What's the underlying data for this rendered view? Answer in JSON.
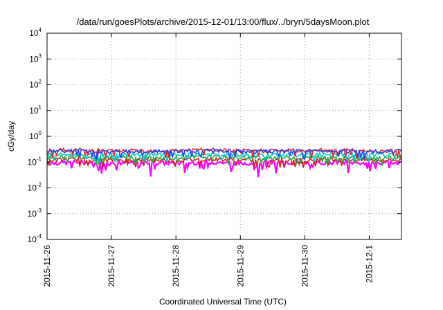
{
  "chart_data": {
    "type": "line",
    "title": "/data/run/goesPlots/archive/2015-12-01/13:00/flux/../bryn/5daysMoon.plot",
    "xlabel": "Coordinated Universal Time (UTC)",
    "ylabel": "cGy/day",
    "x_range": [
      "2015-11-26",
      "2015-12-01 12:00"
    ],
    "x_ticks": [
      "2015-11-26",
      "2015-11-27",
      "2015-11-28",
      "2015-11-29",
      "2015-11-30",
      "2015-12-1"
    ],
    "y_scale": "log",
    "ylim": [
      0.0001,
      10000
    ],
    "y_ticks": [
      {
        "base": "10",
        "exp": "-4"
      },
      {
        "base": "10",
        "exp": "-3"
      },
      {
        "base": "10",
        "exp": "-2"
      },
      {
        "base": "10",
        "exp": "-1"
      },
      {
        "base": "10",
        "exp": "0"
      },
      {
        "base": "10",
        "exp": "1"
      },
      {
        "base": "10",
        "exp": "2"
      },
      {
        "base": "10",
        "exp": "3"
      },
      {
        "base": "10",
        "exp": "4"
      }
    ],
    "grid": true,
    "series_count_days": 5.5,
    "series": [
      {
        "color": "#ff00ff",
        "base": 0.09,
        "dip_min": 0.025,
        "x_days": [
          0,
          0.5,
          1,
          1.5,
          2,
          2.5,
          3,
          3.5,
          4,
          4.5,
          5,
          5.5
        ],
        "y": [
          0.09,
          0.1,
          0.09,
          0.1,
          0.09,
          0.1,
          0.09,
          0.1,
          0.09,
          0.1,
          0.09,
          0.1
        ]
      },
      {
        "color": "#cc2222",
        "base": 0.12,
        "x_days": [
          0,
          0.5,
          1,
          1.5,
          2,
          2.5,
          3,
          3.5,
          4,
          4.5,
          5,
          5.5
        ],
        "y": [
          0.12,
          0.13,
          0.12,
          0.12,
          0.12,
          0.13,
          0.12,
          0.12,
          0.12,
          0.13,
          0.12,
          0.12
        ]
      },
      {
        "color": "#22aa44",
        "base": 0.15,
        "x_days": [
          0,
          0.5,
          1,
          1.5,
          2,
          2.5,
          3,
          3.5,
          4,
          4.5,
          5,
          5.5
        ],
        "y": [
          0.15,
          0.16,
          0.15,
          0.15,
          0.15,
          0.16,
          0.15,
          0.15,
          0.15,
          0.16,
          0.15,
          0.15
        ]
      },
      {
        "color": "#00cccc",
        "base": 0.19,
        "x_days": [
          0,
          0.5,
          1,
          1.5,
          2,
          2.5,
          3,
          3.5,
          4,
          4.5,
          5,
          5.5
        ],
        "y": [
          0.19,
          0.2,
          0.19,
          0.19,
          0.19,
          0.2,
          0.19,
          0.19,
          0.19,
          0.2,
          0.19,
          0.19
        ]
      },
      {
        "color": "#ee2222",
        "base": 0.28,
        "x_days": [
          0,
          0.5,
          1,
          1.5,
          2,
          2.5,
          3,
          3.5,
          4,
          4.5,
          5,
          5.5
        ],
        "y": [
          0.28,
          0.3,
          0.27,
          0.28,
          0.28,
          0.3,
          0.27,
          0.28,
          0.28,
          0.3,
          0.27,
          0.29
        ]
      },
      {
        "color": "#2244ee",
        "base": 0.26,
        "x_days": [
          0,
          0.5,
          1,
          1.5,
          2,
          2.5,
          3,
          3.5,
          4,
          4.5,
          5,
          5.5
        ],
        "y": [
          0.26,
          0.28,
          0.25,
          0.26,
          0.26,
          0.28,
          0.25,
          0.26,
          0.26,
          0.28,
          0.25,
          0.27
        ]
      }
    ]
  }
}
